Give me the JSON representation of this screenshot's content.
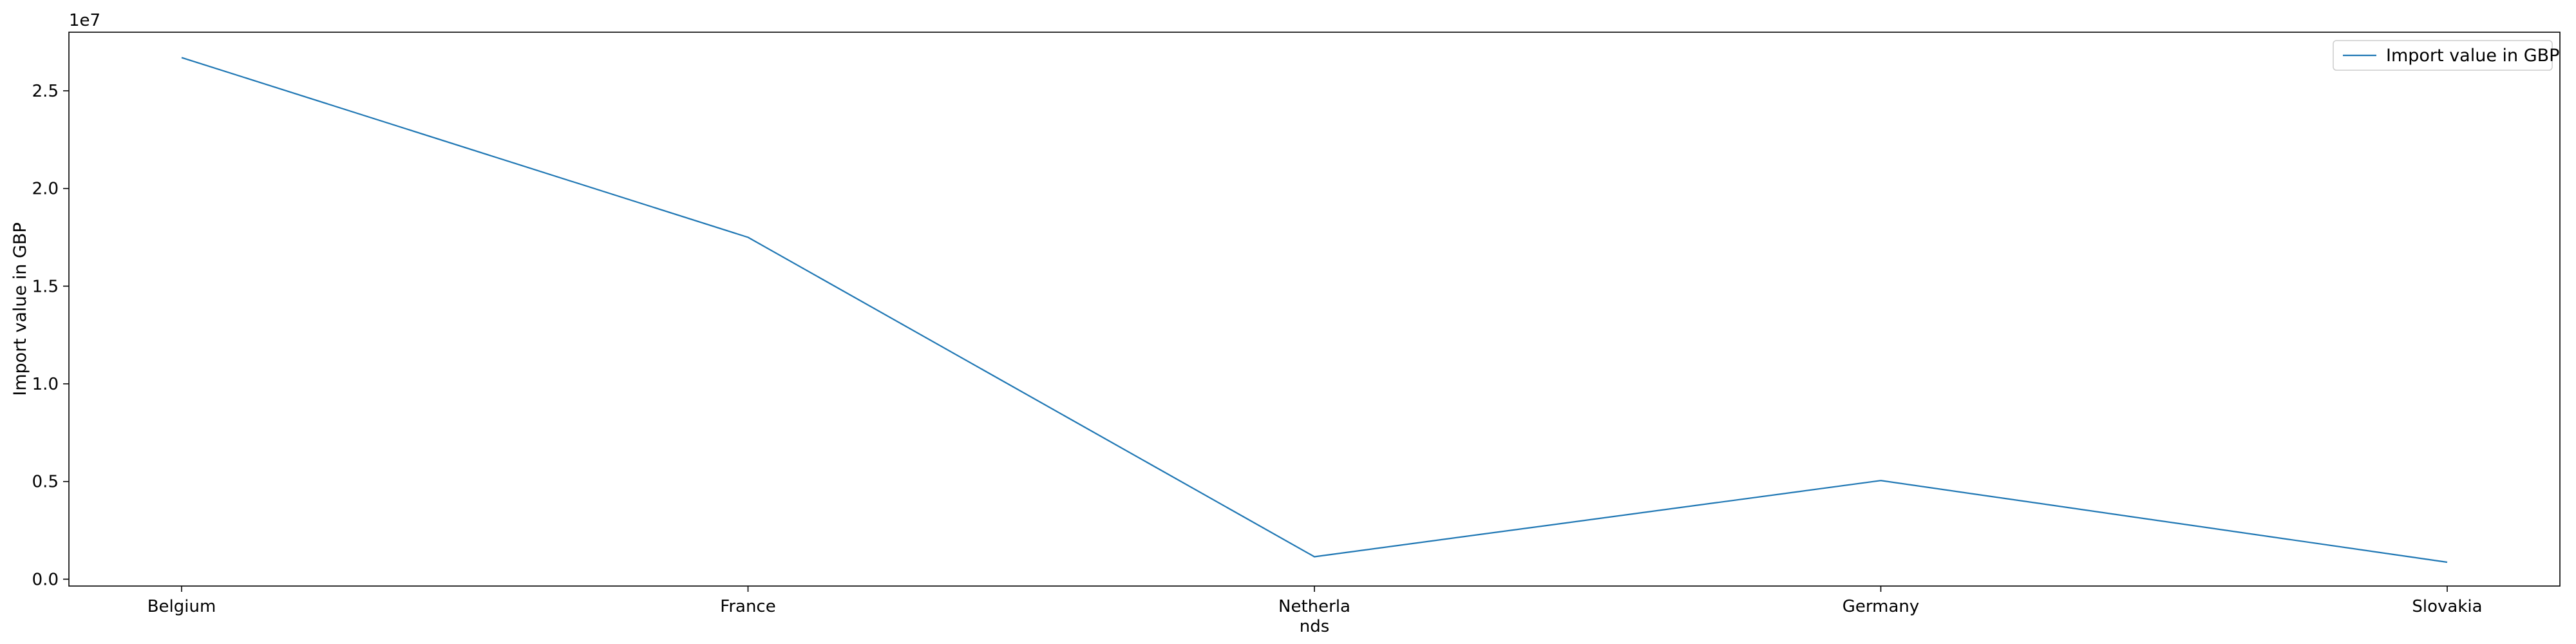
{
  "chart_data": {
    "type": "line",
    "categories": [
      "Belgium",
      "France",
      "Netherla\nnds",
      "Germany",
      "Slovakia"
    ],
    "series": [
      {
        "name": "Import value in GBP",
        "values": [
          26700000,
          17500000,
          1150000,
          5050000,
          870000
        ],
        "color": "#1f77b4"
      }
    ],
    "xlabel": "",
    "ylabel": "Import value in GBP",
    "ylim": [
      -350000,
      28000000
    ],
    "yticks": [
      0,
      5000000,
      10000000,
      15000000,
      20000000,
      25000000
    ],
    "ytick_labels": [
      "0.0",
      "0.5",
      "1.0",
      "1.5",
      "2.0",
      "2.5"
    ],
    "y_multiplier": "1e7",
    "grid": false,
    "legend_position": "top-right"
  }
}
